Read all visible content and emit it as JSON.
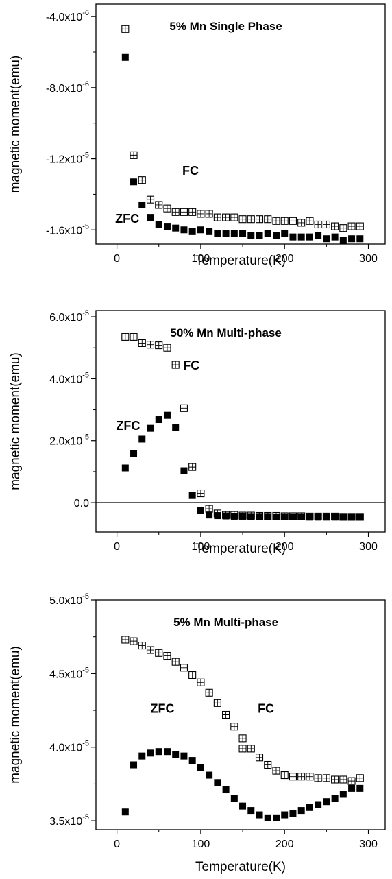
{
  "chart_data": [
    {
      "type": "scatter",
      "title": "5% Mn Single Phase",
      "xlabel": "Temperature(K)",
      "ylabel": "magnetic moment(emu)",
      "xlim": [
        -25,
        320
      ],
      "ylim": [
        -1.68e-05,
        -3.3e-06
      ],
      "xticks": [
        0,
        100,
        200,
        300
      ],
      "xtick_labels": [
        "0",
        "100",
        "200",
        "300"
      ],
      "yticks": [
        -4e-06,
        -8e-06,
        -1.2e-05,
        -1.6e-05
      ],
      "ytick_labels": [
        {
          "mant": "-4.0x10",
          "exp": "-6"
        },
        {
          "mant": "-8.0x10",
          "exp": "-6"
        },
        {
          "mant": "-1.2x10",
          "exp": "-5"
        },
        {
          "mant": "-1.6x10",
          "exp": "-5"
        }
      ],
      "zero_line": false,
      "annotations": [
        {
          "text": "FC",
          "x": 78,
          "y": -1.29e-05
        },
        {
          "text": "ZFC",
          "x": -2,
          "y": -1.56e-05
        }
      ],
      "series": [
        {
          "name": "FC",
          "marker": "open-square",
          "x": [
            10,
            20,
            30,
            40,
            50,
            60,
            70,
            80,
            90,
            100,
            110,
            120,
            130,
            140,
            150,
            160,
            170,
            180,
            190,
            200,
            210,
            220,
            230,
            240,
            250,
            260,
            270,
            280,
            290
          ],
          "y": [
            -4.7e-06,
            -1.18e-05,
            -1.32e-05,
            -1.43e-05,
            -1.46e-05,
            -1.48e-05,
            -1.5e-05,
            -1.5e-05,
            -1.5e-05,
            -1.51e-05,
            -1.51e-05,
            -1.53e-05,
            -1.53e-05,
            -1.53e-05,
            -1.54e-05,
            -1.54e-05,
            -1.54e-05,
            -1.54e-05,
            -1.55e-05,
            -1.55e-05,
            -1.55e-05,
            -1.56e-05,
            -1.55e-05,
            -1.57e-05,
            -1.57e-05,
            -1.58e-05,
            -1.59e-05,
            -1.58e-05,
            -1.58e-05
          ]
        },
        {
          "name": "ZFC",
          "marker": "filled-square",
          "x": [
            10,
            20,
            30,
            40,
            50,
            60,
            70,
            80,
            90,
            100,
            110,
            120,
            130,
            140,
            150,
            160,
            170,
            180,
            190,
            200,
            210,
            220,
            230,
            240,
            250,
            260,
            270,
            280,
            290
          ],
          "y": [
            -6.3e-06,
            -1.33e-05,
            -1.46e-05,
            -1.53e-05,
            -1.57e-05,
            -1.58e-05,
            -1.59e-05,
            -1.6e-05,
            -1.61e-05,
            -1.6e-05,
            -1.61e-05,
            -1.62e-05,
            -1.62e-05,
            -1.62e-05,
            -1.62e-05,
            -1.63e-05,
            -1.63e-05,
            -1.62e-05,
            -1.63e-05,
            -1.62e-05,
            -1.64e-05,
            -1.64e-05,
            -1.64e-05,
            -1.63e-05,
            -1.65e-05,
            -1.64e-05,
            -1.66e-05,
            -1.65e-05,
            -1.65e-05
          ]
        }
      ]
    },
    {
      "type": "scatter",
      "title": "50% Mn Multi-phase",
      "xlabel": "Temperature(K)",
      "ylabel": "magnetic moment(emu)",
      "xlim": [
        -25,
        320
      ],
      "ylim": [
        -9.5e-06,
        6.2e-05
      ],
      "xticks": [
        0,
        100,
        200,
        300
      ],
      "xtick_labels": [
        "0",
        "100",
        "200",
        "300"
      ],
      "yticks": [
        0,
        2e-05,
        4e-05,
        6e-05
      ],
      "ytick_labels": [
        {
          "mant": "0.0",
          "exp": ""
        },
        {
          "mant": "2.0x10",
          "exp": "-5"
        },
        {
          "mant": "4.0x10",
          "exp": "-5"
        },
        {
          "mant": "6.0x10",
          "exp": "-5"
        }
      ],
      "zero_line": true,
      "annotations": [
        {
          "text": "FC",
          "x": 79,
          "y": 4.3e-05
        },
        {
          "text": "ZFC",
          "x": -1,
          "y": 2.35e-05
        }
      ],
      "series": [
        {
          "name": "FC",
          "marker": "open-square",
          "x": [
            10,
            20,
            30,
            40,
            50,
            60,
            70,
            80,
            90,
            100,
            110,
            120,
            130,
            140,
            150,
            160,
            170,
            180,
            190,
            200,
            210,
            220,
            230,
            240,
            250,
            260,
            270,
            280,
            290
          ],
          "y": [
            5.35e-05,
            5.35e-05,
            5.15e-05,
            5.1e-05,
            5.08e-05,
            5e-05,
            4.45e-05,
            3.05e-05,
            1.15e-05,
            3e-06,
            -2e-06,
            -3.5e-06,
            -4e-06,
            -4e-06,
            -4.2e-06,
            -4.2e-06,
            -4.3e-06,
            -4.3e-06,
            -4.3e-06,
            -4.4e-06,
            -4.4e-06,
            -4.4e-06,
            -4.5e-06,
            -4.5e-06,
            -4.5e-06,
            -4.5e-06,
            -4.6e-06,
            -4.6e-06,
            -4.6e-06
          ]
        },
        {
          "name": "ZFC",
          "marker": "filled-square",
          "x": [
            10,
            20,
            30,
            40,
            50,
            60,
            70,
            80,
            90,
            100,
            110,
            120,
            130,
            140,
            150,
            160,
            170,
            180,
            190,
            200,
            210,
            220,
            230,
            240,
            250,
            260,
            270,
            280,
            290
          ],
          "y": [
            1.12e-05,
            1.58e-05,
            2.05e-05,
            2.4e-05,
            2.68e-05,
            2.82e-05,
            2.42e-05,
            1.03e-05,
            2.3e-06,
            -2.5e-06,
            -4e-06,
            -4.2e-06,
            -4.3e-06,
            -4.4e-06,
            -4.4e-06,
            -4.5e-06,
            -4.5e-06,
            -4.5e-06,
            -4.6e-06,
            -4.6e-06,
            -4.6e-06,
            -4.6e-06,
            -4.7e-06,
            -4.7e-06,
            -4.7e-06,
            -4.7e-06,
            -4.7e-06,
            -4.7e-06,
            -4.7e-06
          ]
        }
      ]
    },
    {
      "type": "scatter",
      "title": "5% Mn Multi-phase",
      "xlabel": "Temperature(K)",
      "ylabel": "magnetic moment(emu)",
      "xlim": [
        -25,
        320
      ],
      "ylim": [
        3.44e-05,
        5e-05
      ],
      "xticks": [
        0,
        100,
        200,
        300
      ],
      "xtick_labels": [
        "0",
        "100",
        "200",
        "300"
      ],
      "yticks": [
        3.5e-05,
        4e-05,
        4.5e-05,
        5e-05
      ],
      "ytick_labels": [
        {
          "mant": "3.5x10",
          "exp": "-5"
        },
        {
          "mant": "4.0x10",
          "exp": "-5"
        },
        {
          "mant": "4.5x10",
          "exp": "-5"
        },
        {
          "mant": "5.0x10",
          "exp": "-5"
        }
      ],
      "zero_line": false,
      "annotations": [
        {
          "text": "ZFC",
          "x": 40,
          "y": 4.235e-05
        },
        {
          "text": "FC",
          "x": 168,
          "y": 4.235e-05
        }
      ],
      "series": [
        {
          "name": "FC",
          "marker": "open-square",
          "x": [
            10,
            20,
            30,
            40,
            50,
            60,
            70,
            80,
            90,
            100,
            110,
            120,
            130,
            140,
            150,
            150,
            160,
            170,
            180,
            190,
            200,
            210,
            220,
            230,
            240,
            250,
            260,
            270,
            280,
            290
          ],
          "y": [
            4.73e-05,
            4.72e-05,
            4.69e-05,
            4.66e-05,
            4.64e-05,
            4.62e-05,
            4.58e-05,
            4.54e-05,
            4.49e-05,
            4.44e-05,
            4.37e-05,
            4.3e-05,
            4.22e-05,
            4.14e-05,
            4.06e-05,
            3.99e-05,
            3.99e-05,
            3.93e-05,
            3.88e-05,
            3.84e-05,
            3.81e-05,
            3.8e-05,
            3.8e-05,
            3.8e-05,
            3.79e-05,
            3.79e-05,
            3.78e-05,
            3.78e-05,
            3.77e-05,
            3.79e-05
          ]
        },
        {
          "name": "ZFC",
          "marker": "filled-square",
          "x": [
            10,
            20,
            30,
            40,
            50,
            60,
            70,
            80,
            90,
            100,
            110,
            120,
            130,
            140,
            150,
            160,
            170,
            180,
            190,
            200,
            210,
            220,
            230,
            240,
            250,
            260,
            270,
            280,
            290
          ],
          "y": [
            3.56e-05,
            3.88e-05,
            3.94e-05,
            3.96e-05,
            3.97e-05,
            3.97e-05,
            3.95e-05,
            3.94e-05,
            3.91e-05,
            3.86e-05,
            3.81e-05,
            3.76e-05,
            3.71e-05,
            3.65e-05,
            3.6e-05,
            3.57e-05,
            3.54e-05,
            3.52e-05,
            3.52e-05,
            3.54e-05,
            3.55e-05,
            3.57e-05,
            3.59e-05,
            3.61e-05,
            3.63e-05,
            3.65e-05,
            3.68e-05,
            3.72e-05,
            3.72e-05
          ]
        }
      ]
    }
  ]
}
